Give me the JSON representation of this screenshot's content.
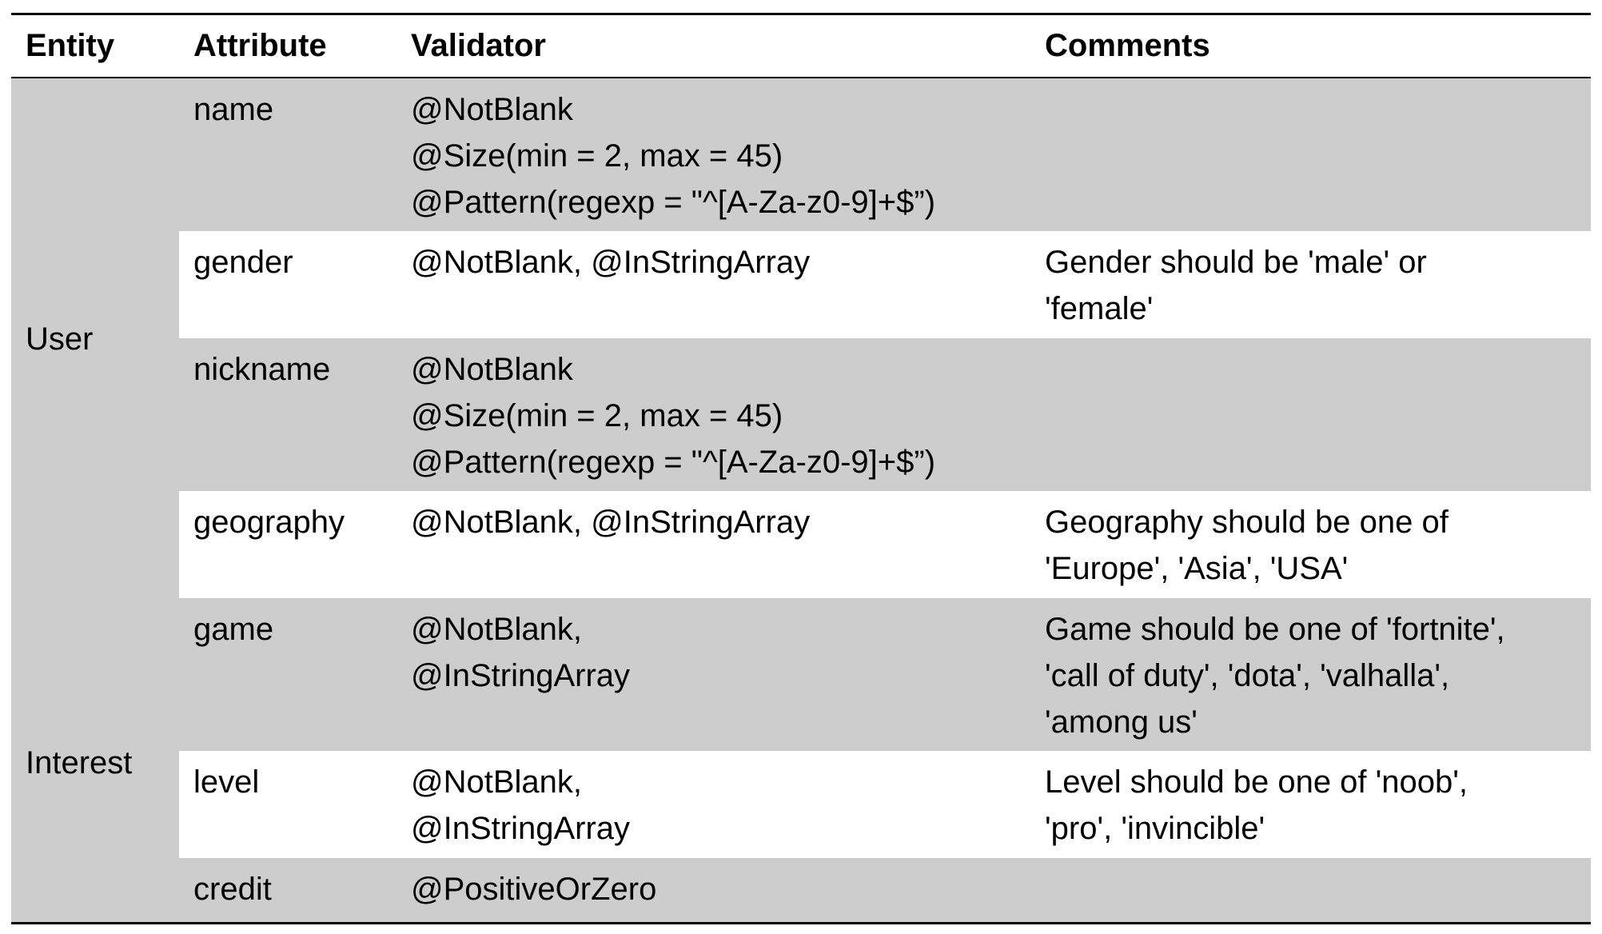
{
  "headers": {
    "entity": "Entity",
    "attribute": "Attribute",
    "validator": "Validator",
    "comments": "Comments"
  },
  "entities": [
    {
      "name": "User"
    },
    {
      "name": "Interest"
    }
  ],
  "rows": [
    {
      "attribute": "name",
      "validator": [
        "@NotBlank",
        "@Size(min = 2, max = 45)",
        "@Pattern(regexp = \"^[A-Za-z0-9]+$”)"
      ],
      "comments": []
    },
    {
      "attribute": "gender",
      "validator": [
        "@NotBlank, @InStringArray"
      ],
      "comments": [
        "Gender should be 'male' or",
        "'female'"
      ]
    },
    {
      "attribute": "nickname",
      "validator": [
        "@NotBlank",
        "@Size(min = 2, max = 45)",
        "@Pattern(regexp = \"^[A-Za-z0-9]+$”)"
      ],
      "comments": []
    },
    {
      "attribute": "geography",
      "validator": [
        "@NotBlank, @InStringArray"
      ],
      "comments": [
        "Geography should be one of",
        "'Europe', 'Asia', 'USA'"
      ]
    },
    {
      "attribute": "game",
      "validator": [
        "@NotBlank,",
        "@InStringArray"
      ],
      "comments": [
        "Game should be one of 'fortnite',",
        "'call of duty', 'dota', 'valhalla',",
        "'among us'"
      ]
    },
    {
      "attribute": "level",
      "validator": [
        "@NotBlank,",
        "@InStringArray"
      ],
      "comments": [
        "Level should be one of 'noob',",
        "'pro', 'invincible'"
      ]
    },
    {
      "attribute": "credit",
      "validator": [
        "@PositiveOrZero"
      ],
      "comments": []
    }
  ]
}
